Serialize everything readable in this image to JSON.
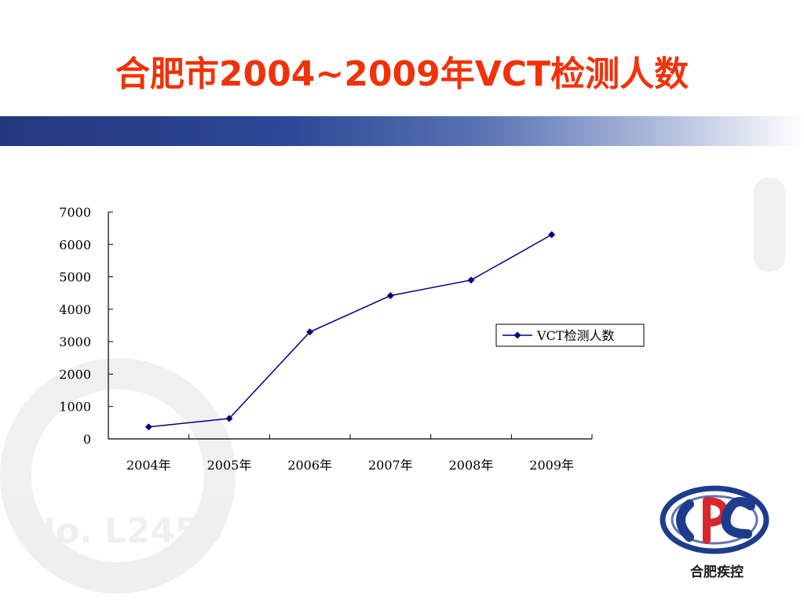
{
  "slide": {
    "title": "合肥市2004~2009年VCT检测人数"
  },
  "chart_data": {
    "type": "line",
    "categories": [
      "2004年",
      "2005年",
      "2006年",
      "2007年",
      "2008年",
      "2009年"
    ],
    "series": [
      {
        "name": "VCT检测人数",
        "values": [
          370,
          630,
          3300,
          4420,
          4900,
          6300
        ],
        "color": "#000080"
      }
    ],
    "title": "",
    "xlabel": "",
    "ylabel": "",
    "ylim": [
      0,
      7000
    ],
    "yticks": [
      0,
      1000,
      2000,
      3000,
      4000,
      5000,
      6000,
      7000
    ],
    "grid": false,
    "legend": "right"
  },
  "logo": {
    "text": "合肥疾控",
    "colors": {
      "blue": "#1e3c8c",
      "red": "#d9262c"
    }
  },
  "colors": {
    "title": "#f0320a",
    "band_start": "#24387f"
  }
}
